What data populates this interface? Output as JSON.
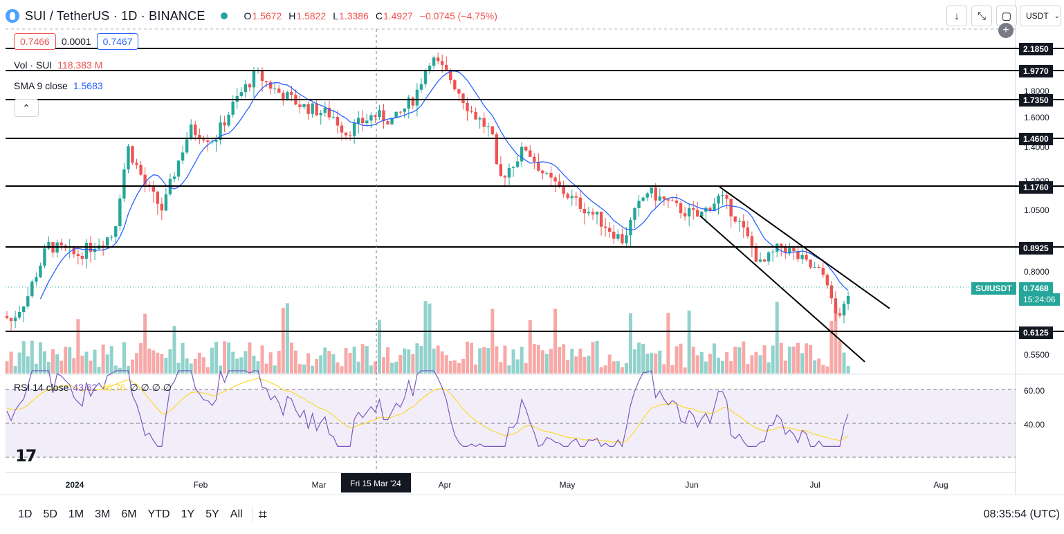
{
  "header": {
    "title": "SUI / TetherUS · 1D · BINANCE",
    "ohlc": {
      "o_label": "O",
      "o": "1.5672",
      "h_label": "H",
      "h": "1.5822",
      "l_label": "L",
      "l": "1.3386",
      "c_label": "C",
      "c": "1.4927",
      "change": "−0.0745 (−4.75%)"
    },
    "currency": "USDT"
  },
  "spread": {
    "bid": "0.7466",
    "diff": "0.0001",
    "ask": "0.7467"
  },
  "indicators": {
    "vol": {
      "label": "Vol · SUI",
      "value": "118.383 M"
    },
    "sma": {
      "label": "SMA 9 close",
      "value": "1.5683"
    },
    "rsi": {
      "label": "RSI 14 close",
      "v1": "43.62",
      "v2": "46.76",
      "rest": "∅ ∅ ∅ ∅"
    }
  },
  "colors": {
    "up": "#26a69a",
    "down": "#ef5350",
    "sma": "#2962ff",
    "rsi": "#7e57c2",
    "rsi_ma": "#fdd835",
    "rsi_bg": "#ede7f6"
  },
  "price_axis": {
    "ticks": [
      "1.8000",
      "1.6000",
      "1.4000",
      "1.2000",
      "1.0500",
      "0.8000",
      "0.5500"
    ],
    "rsi_ticks": [
      "60.00",
      "40.00"
    ]
  },
  "levels": [
    "2.1850",
    "1.9770",
    "1.7350",
    "1.4600",
    "1.1760",
    "0.8925",
    "0.6125"
  ],
  "last_price": {
    "symbol": "SUIUSDT",
    "price": "0.7468",
    "countdown": "15:24:06"
  },
  "time_axis": {
    "labels": [
      "2024",
      "Feb",
      "Mar",
      "Apr",
      "May",
      "Jun",
      "Jul",
      "Aug"
    ],
    "crosshair": "Fri 15 Mar '24"
  },
  "logo": "17",
  "bottom": {
    "ranges": [
      "1D",
      "5D",
      "1M",
      "3M",
      "6M",
      "YTD",
      "1Y",
      "5Y",
      "All"
    ],
    "clock": "08:35:54 (UTC)"
  }
}
